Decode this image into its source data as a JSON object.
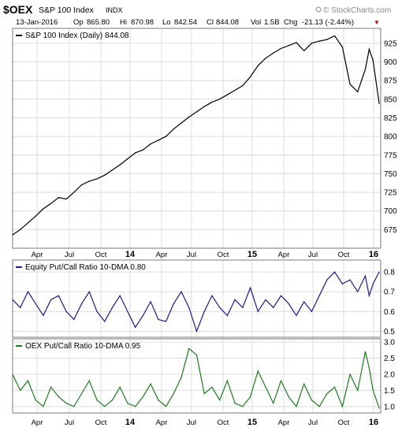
{
  "header": {
    "symbol": "$OEX",
    "name": "S&P 100 Index",
    "exchange": "INDX",
    "brand": "© StockCharts.com",
    "date": "13-Jan-2016",
    "open_label": "Op",
    "open": "865.80",
    "high_label": "Hi",
    "high": "870.98",
    "low_label": "Lo",
    "low": "842.54",
    "close_label": "Cl",
    "close": "844.08",
    "volume_label": "Vol",
    "volume": "1.5B",
    "change_label": "Chg",
    "change": "-21.13 (-2.44%)",
    "change_arrow": "▼"
  },
  "x_axis": {
    "ticks": [
      "Apr",
      "Jul",
      "Oct",
      "14",
      "Apr",
      "Jul",
      "Oct",
      "15",
      "Apr",
      "Jul",
      "Oct",
      "16"
    ],
    "year_ticks": [
      "14",
      "15",
      "16"
    ]
  },
  "colors": {
    "price_line": "#000000",
    "equity_line": "#1a1a8c",
    "oex_line": "#1e7a1e",
    "grid": "#dcdcdc",
    "frame": "#7a7a7a"
  },
  "chart_data": [
    {
      "type": "line",
      "title": "S&P 100 Index (Daily) 844.08",
      "series": [
        {
          "name": "S&P 100 Index (Daily)",
          "x": [
            0,
            10,
            20,
            30,
            40,
            50,
            60,
            70,
            80,
            90,
            100,
            110,
            120,
            130,
            140,
            150,
            160,
            170,
            180,
            190,
            200,
            210,
            220,
            230,
            240,
            250,
            260,
            270,
            280,
            290,
            300,
            310,
            320,
            330,
            340,
            350,
            360,
            370,
            380,
            390,
            400,
            410,
            420,
            430,
            440,
            450,
            460,
            465,
            470,
            478
          ],
          "values": [
            668,
            675,
            684,
            693,
            703,
            710,
            718,
            716,
            725,
            735,
            740,
            743,
            748,
            755,
            762,
            770,
            778,
            782,
            790,
            795,
            800,
            810,
            818,
            826,
            833,
            840,
            846,
            850,
            856,
            862,
            868,
            880,
            895,
            905,
            912,
            918,
            922,
            926,
            915,
            925,
            928,
            930,
            935,
            920,
            870,
            860,
            890,
            917,
            902,
            844
          ]
        }
      ],
      "ylim": [
        650,
        945
      ],
      "y_ticks": [
        675,
        700,
        725,
        750,
        775,
        800,
        825,
        850,
        875,
        900,
        925
      ],
      "grid": true,
      "legend": "top-left"
    },
    {
      "type": "line",
      "title": "Equity Put/Call Ratio 10-DMA 0.80",
      "series": [
        {
          "name": "Equity Put/Call Ratio 10-DMA",
          "x": [
            0,
            10,
            20,
            30,
            40,
            50,
            60,
            70,
            80,
            90,
            100,
            110,
            120,
            130,
            140,
            150,
            160,
            170,
            180,
            190,
            200,
            210,
            220,
            230,
            240,
            250,
            260,
            270,
            280,
            290,
            300,
            310,
            320,
            330,
            340,
            350,
            360,
            370,
            380,
            390,
            400,
            410,
            420,
            430,
            440,
            450,
            460,
            465,
            470,
            478
          ],
          "values": [
            0.66,
            0.62,
            0.7,
            0.64,
            0.58,
            0.66,
            0.68,
            0.6,
            0.56,
            0.64,
            0.7,
            0.6,
            0.55,
            0.62,
            0.68,
            0.6,
            0.52,
            0.58,
            0.65,
            0.56,
            0.55,
            0.64,
            0.7,
            0.62,
            0.5,
            0.6,
            0.68,
            0.62,
            0.58,
            0.66,
            0.62,
            0.72,
            0.6,
            0.66,
            0.62,
            0.68,
            0.64,
            0.58,
            0.65,
            0.6,
            0.68,
            0.76,
            0.8,
            0.74,
            0.76,
            0.7,
            0.78,
            0.68,
            0.74,
            0.8
          ]
        }
      ],
      "ylim": [
        0.47,
        0.86
      ],
      "y_ticks": [
        0.5,
        0.6,
        0.7,
        0.8
      ],
      "grid": true,
      "legend": "top-left"
    },
    {
      "type": "line",
      "title": "OEX Put/Call Ratio 10-DMA 0.95",
      "series": [
        {
          "name": "OEX Put/Call Ratio 10-DMA",
          "x": [
            0,
            10,
            20,
            30,
            40,
            50,
            60,
            70,
            80,
            90,
            100,
            110,
            120,
            130,
            140,
            150,
            160,
            170,
            180,
            190,
            200,
            210,
            220,
            230,
            240,
            250,
            260,
            270,
            280,
            290,
            300,
            310,
            320,
            330,
            340,
            350,
            360,
            370,
            380,
            390,
            400,
            410,
            420,
            430,
            440,
            450,
            460,
            465,
            470,
            478
          ],
          "values": [
            2.0,
            1.5,
            1.8,
            1.2,
            1.0,
            1.6,
            1.3,
            1.1,
            1.0,
            1.4,
            1.8,
            1.2,
            1.0,
            1.2,
            1.6,
            1.1,
            1.0,
            1.3,
            1.7,
            1.2,
            1.0,
            1.4,
            1.9,
            2.8,
            2.6,
            1.4,
            1.6,
            1.2,
            1.8,
            1.1,
            1.0,
            1.3,
            2.1,
            1.6,
            1.1,
            1.8,
            1.3,
            1.0,
            1.7,
            1.2,
            1.0,
            1.4,
            1.6,
            1.0,
            2.0,
            1.5,
            2.7,
            2.2,
            1.5,
            0.95
          ]
        }
      ],
      "ylim": [
        0.8,
        3.1
      ],
      "y_ticks": [
        1.0,
        1.5,
        2.0,
        2.5,
        3.0
      ],
      "grid": true,
      "legend": "top-left"
    }
  ]
}
